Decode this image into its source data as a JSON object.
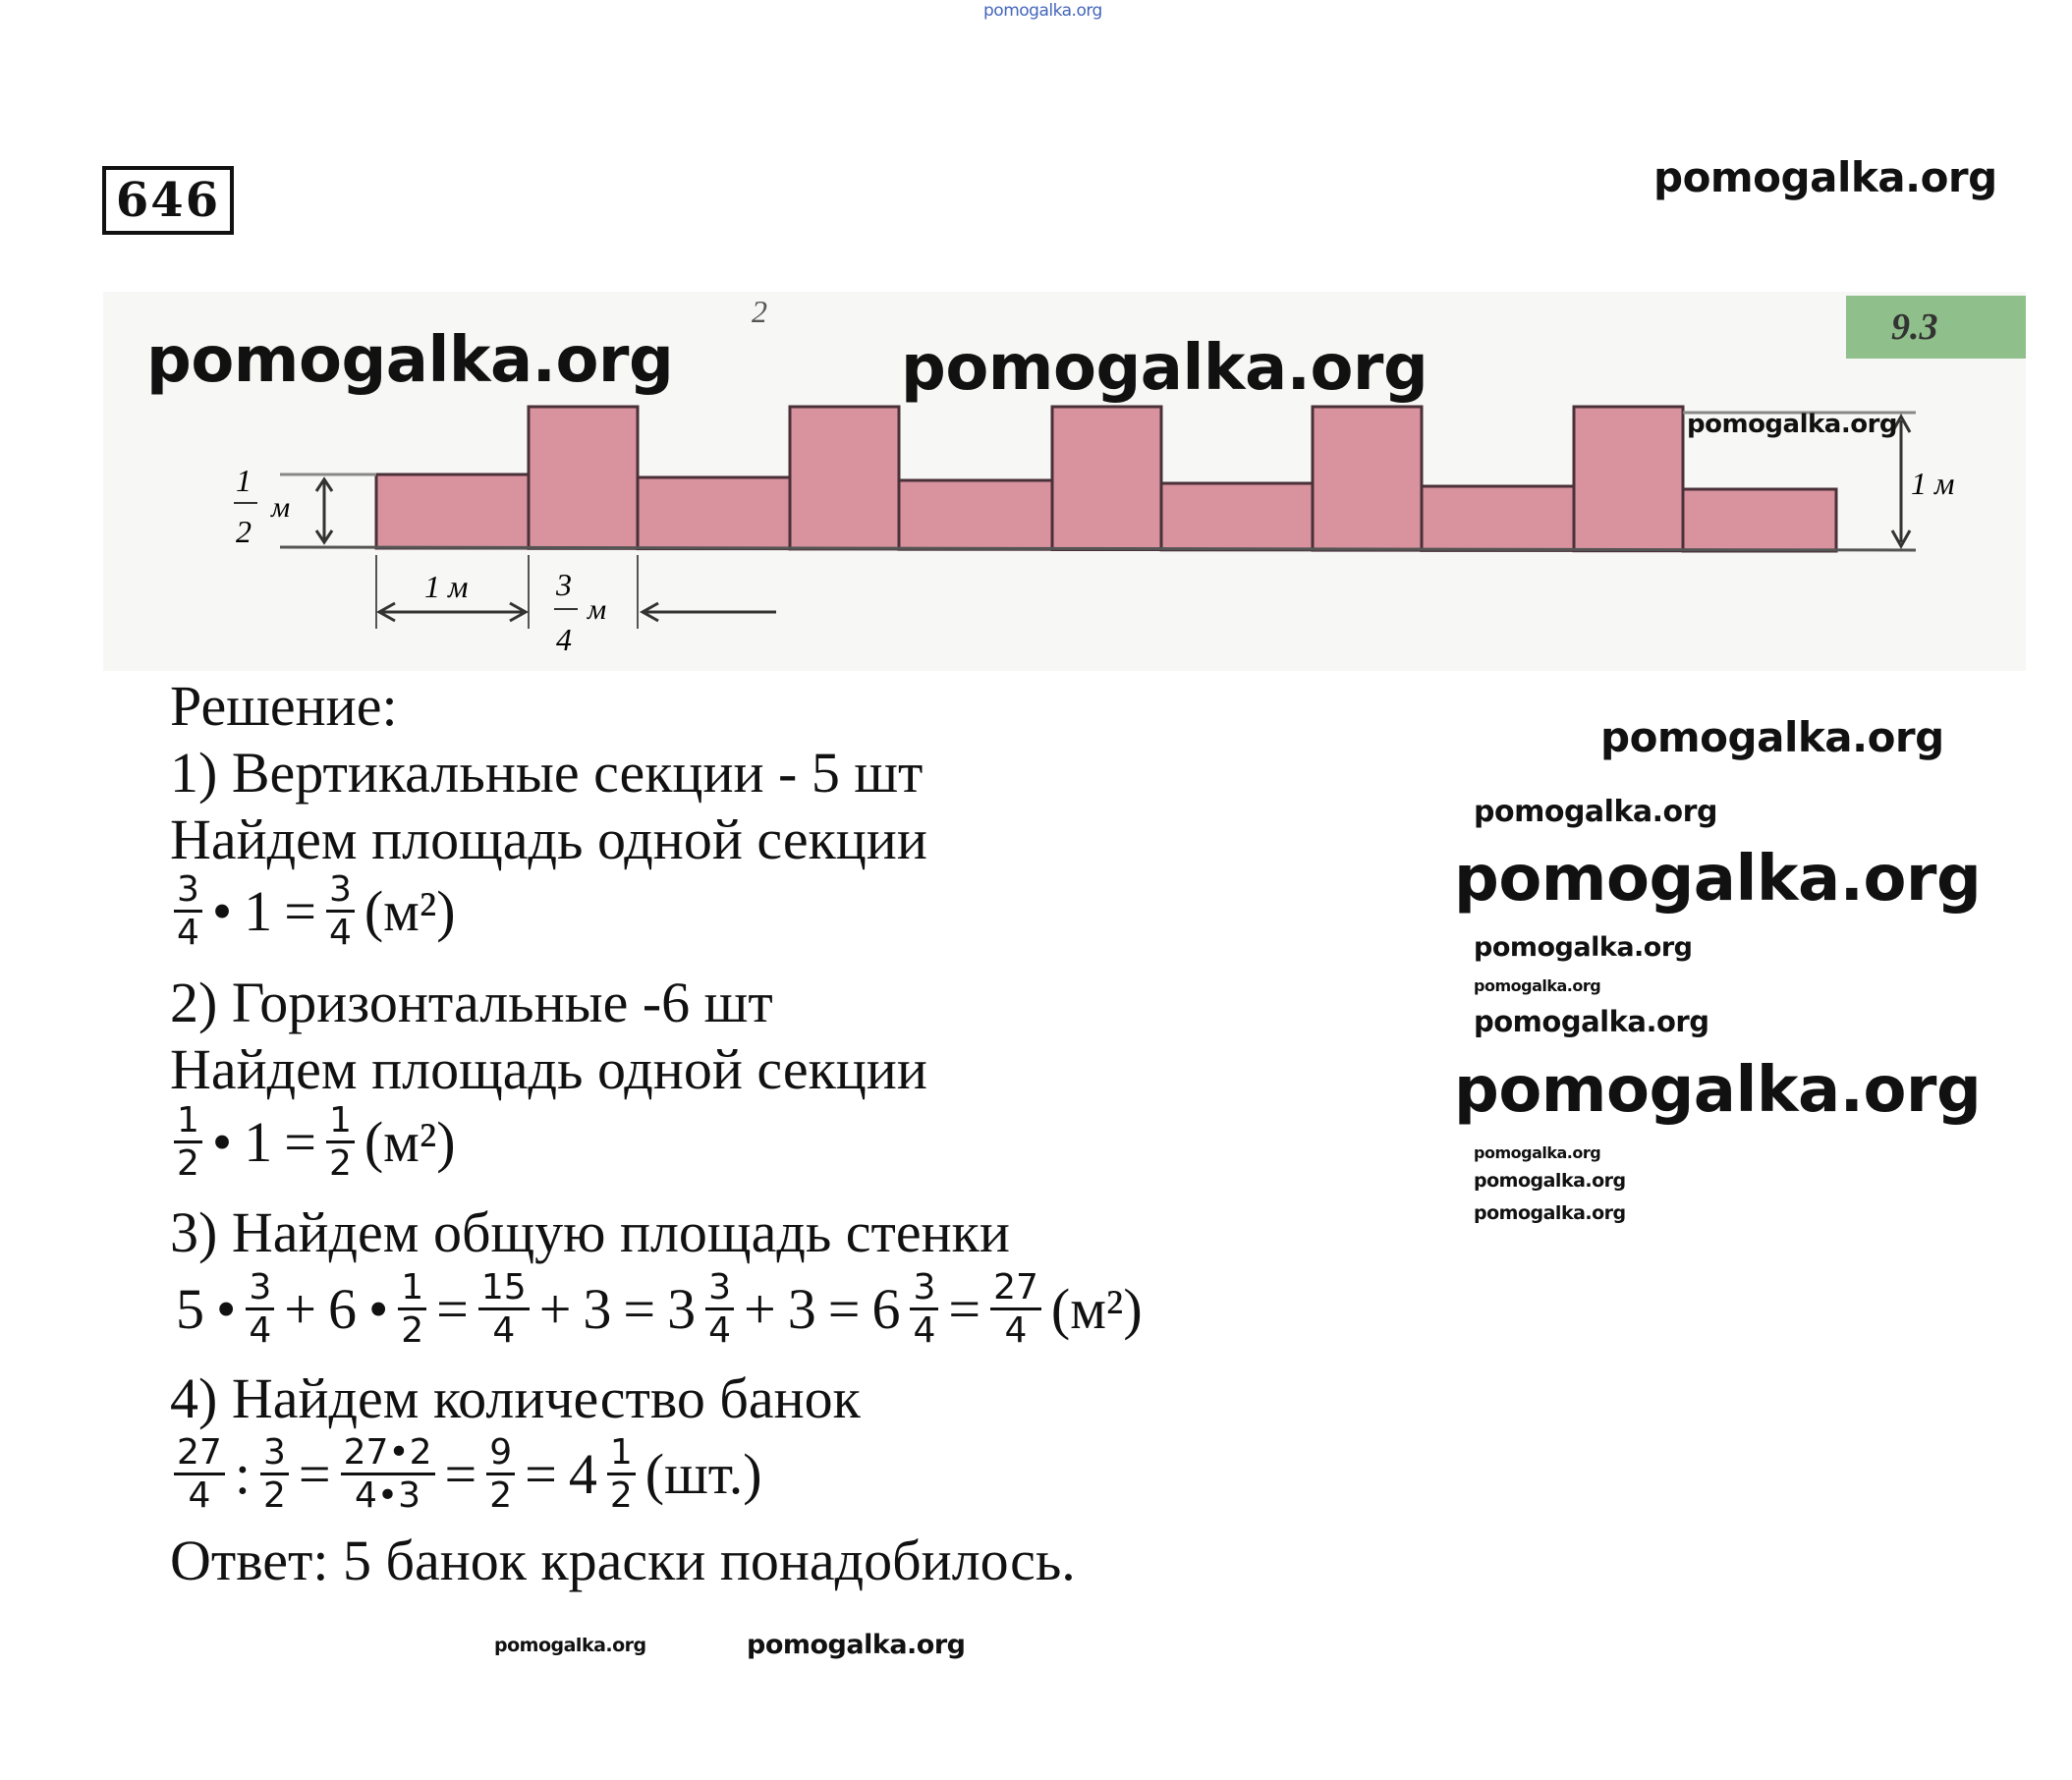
{
  "problem_number": "646",
  "watermark": "pomogalka.org",
  "diagram": {
    "label_top": "2",
    "badge": "9.3",
    "half_label": {
      "n": "1",
      "d": "2",
      "unit": "м"
    },
    "height_label": "1 м",
    "width_label": "1 м",
    "gap_label": {
      "n": "3",
      "d": "4",
      "unit": "м"
    },
    "fill_color": "#d8939f",
    "badge_color": "#8fbf8a"
  },
  "solution": {
    "heading": "Решение:",
    "step1": "1) Вертикальные секции - 5 шт",
    "step1_sub": "Найдем площадь одной секции",
    "formula1": [
      {
        "n": "3",
        "d": "4"
      },
      {
        "t": "•"
      },
      {
        "t": "1"
      },
      {
        "t": "="
      },
      {
        "n": "3",
        "d": "4"
      },
      {
        "t": "(м²)"
      }
    ],
    "step2": "2) Горизонтальные -6 шт",
    "step2_sub": "Найдем площадь одной секции",
    "formula2": [
      {
        "n": "1",
        "d": "2"
      },
      {
        "t": "•"
      },
      {
        "t": "1"
      },
      {
        "t": "="
      },
      {
        "n": "1",
        "d": "2"
      },
      {
        "t": "(м²)"
      }
    ],
    "step3": "3) Найдем общую площадь стенки",
    "formula3": [
      {
        "t": "5"
      },
      {
        "t": "•"
      },
      {
        "n": "3",
        "d": "4"
      },
      {
        "t": "+"
      },
      {
        "t": "6"
      },
      {
        "t": "•"
      },
      {
        "n": "1",
        "d": "2"
      },
      {
        "t": "="
      },
      {
        "n": "15",
        "d": "4"
      },
      {
        "t": "+"
      },
      {
        "t": "3"
      },
      {
        "t": "="
      },
      {
        "w": "3",
        "n": "3",
        "d": "4"
      },
      {
        "t": "+"
      },
      {
        "t": "3"
      },
      {
        "t": "="
      },
      {
        "w": "6",
        "n": "3",
        "d": "4"
      },
      {
        "t": "="
      },
      {
        "n": "27",
        "d": "4"
      },
      {
        "t": "(м²)"
      }
    ],
    "step4": "4) Найдем количество банок",
    "formula4": [
      {
        "n": "27",
        "d": "4"
      },
      {
        "t": ":"
      },
      {
        "n": "3",
        "d": "2"
      },
      {
        "t": "="
      },
      {
        "n": "27•2",
        "d": "4•3"
      },
      {
        "t": "="
      },
      {
        "n": "9",
        "d": "2"
      },
      {
        "t": "="
      },
      {
        "w": "4",
        "n": "1",
        "d": "2"
      },
      {
        "t": "(шт.)"
      }
    ],
    "answer": "Ответ: 5 банок краски понадобилось."
  }
}
